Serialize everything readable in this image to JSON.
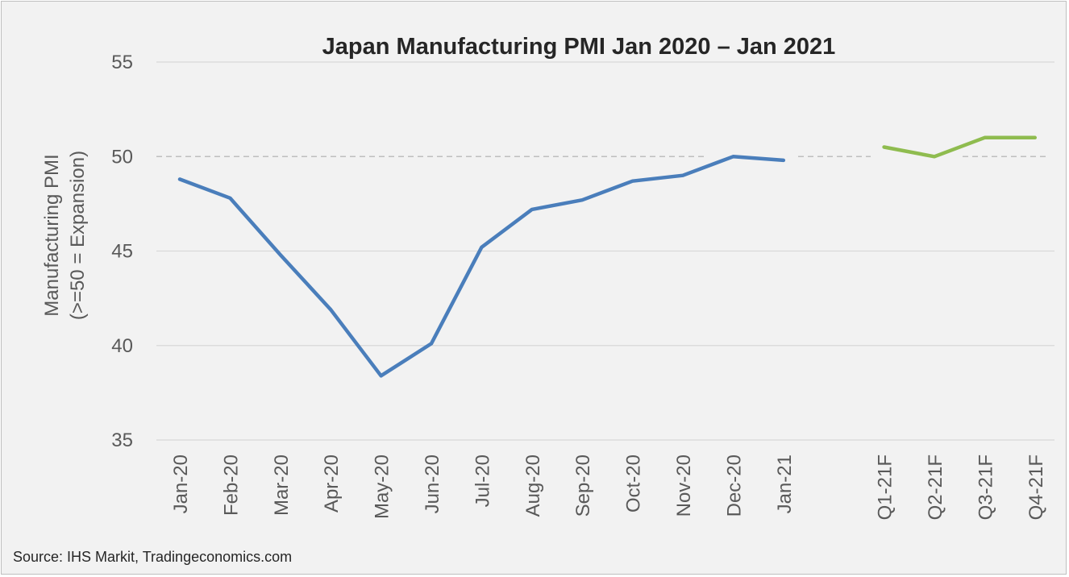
{
  "chart_data": {
    "type": "line",
    "title": "Japan Manufacturing PMI Jan 2020 – Jan 2021",
    "ylabel_lines": [
      "Manufacturing  PMI",
      "(>=50 = Expansion)"
    ],
    "xlabel": "",
    "ylim": [
      35,
      55
    ],
    "yticks": [
      35,
      40,
      45,
      50,
      55
    ],
    "grid": true,
    "legend": "none",
    "reference_line": {
      "y": 50,
      "style": "dashed"
    },
    "categories": [
      "Jan-20",
      "Feb-20",
      "Mar-20",
      "Apr-20",
      "May-20",
      "Jun-20",
      "Jul-20",
      "Aug-20",
      "Sep-20",
      "Oct-20",
      "Nov-20",
      "Dec-20",
      "Jan-21",
      "",
      "Q1-21F",
      "Q2-21F",
      "Q3-21F",
      "Q4-21F"
    ],
    "series": [
      {
        "color": "#4a7ebb",
        "values": [
          48.8,
          47.8,
          44.8,
          41.9,
          38.4,
          40.1,
          45.2,
          47.2,
          47.7,
          48.7,
          49.0,
          50.0,
          49.8,
          null,
          null,
          null,
          null,
          null
        ]
      },
      {
        "color": "#8fbc4f",
        "values": [
          null,
          null,
          null,
          null,
          null,
          null,
          null,
          null,
          null,
          null,
          null,
          null,
          null,
          null,
          50.5,
          50.0,
          51.0,
          51.0
        ]
      }
    ],
    "source": "Source: IHS Markit, Tradingeconomics.com"
  },
  "colors": {
    "background": "#f2f2f2",
    "gridline": "#d9d9d9",
    "reference_line": "#bfbfbf"
  }
}
